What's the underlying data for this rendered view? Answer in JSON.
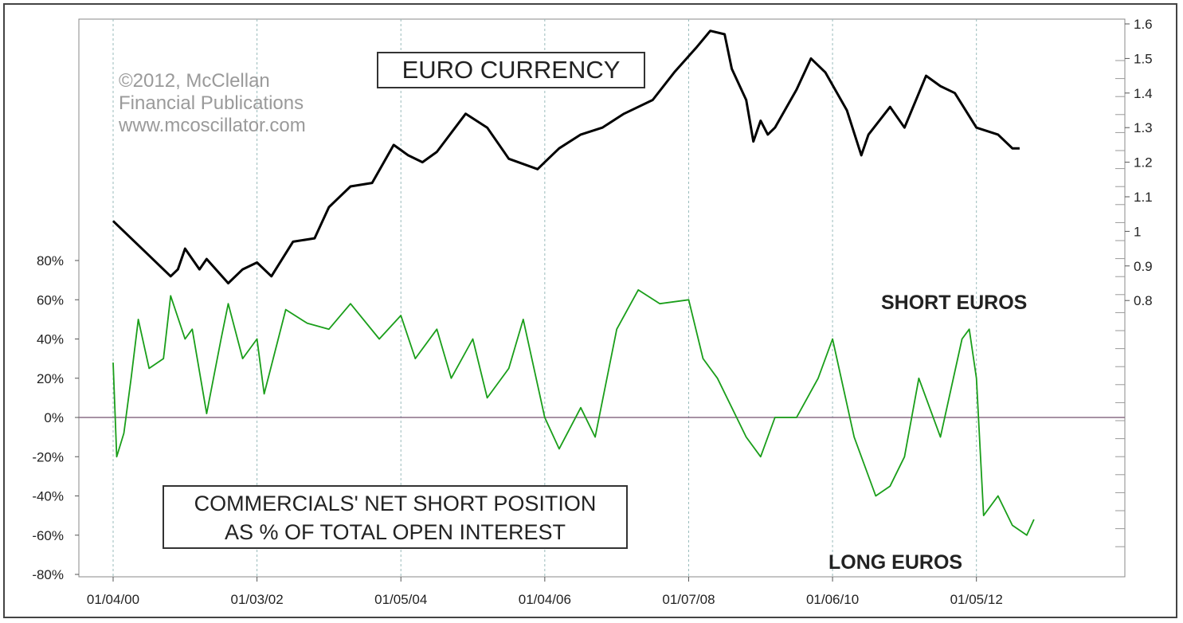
{
  "chart_data": {
    "type": "line",
    "title": "EURO CURRENCY",
    "subtitle_lines": [
      "COMMERCIALS' NET SHORT POSITION",
      "AS % OF TOTAL OPEN INTEREST"
    ],
    "copyright": [
      "©2012, McClellan",
      "Financial Publications",
      "www.mcoscillator.com"
    ],
    "annotations": {
      "short": "SHORT EUROS",
      "long": "LONG EUROS"
    },
    "x_tick_labels": [
      "01/04/00",
      "01/03/02",
      "01/05/04",
      "01/04/06",
      "01/07/08",
      "01/06/10",
      "01/05/12"
    ],
    "left_axis": {
      "ylim": [
        -80,
        80
      ],
      "tick_values": [
        80,
        60,
        40,
        20,
        0,
        -20,
        -40,
        -60,
        -80
      ],
      "tick_labels": [
        "80%",
        "60%",
        "40%",
        "20%",
        "0%",
        "-20%",
        "-40%",
        "-60%",
        "-80%"
      ]
    },
    "right_axis": {
      "ylim": [
        0.8,
        1.6
      ],
      "tick_values": [
        1.6,
        1.5,
        1.4,
        1.3,
        1.2,
        1.1,
        1.0,
        0.9,
        0.8
      ],
      "tick_labels": [
        "1.6",
        "1.5",
        "1.4",
        "1.3",
        "1.2",
        "1.1",
        "1",
        "0.9",
        "0.8"
      ]
    },
    "grid": "vertical dashed",
    "series": [
      {
        "axis": "right",
        "color": "#000000",
        "x": [
          2000.0,
          2000.3,
          2000.5,
          2000.8,
          2000.9,
          2001.0,
          2001.2,
          2001.3,
          2001.6,
          2001.8,
          2002.0,
          2002.2,
          2002.5,
          2002.8,
          2003.0,
          2003.3,
          2003.6,
          2003.9,
          2004.1,
          2004.3,
          2004.5,
          2004.9,
          2005.2,
          2005.5,
          2005.9,
          2006.0,
          2006.2,
          2006.5,
          2006.8,
          2007.1,
          2007.5,
          2007.8,
          2008.1,
          2008.3,
          2008.5,
          2008.6,
          2008.8,
          2008.9,
          2009.0,
          2009.1,
          2009.2,
          2009.5,
          2009.7,
          2009.9,
          2010.2,
          2010.4,
          2010.5,
          2010.8,
          2011.0,
          2011.3,
          2011.5,
          2011.7,
          2012.0,
          2012.3,
          2012.5,
          2012.6
        ],
        "values": [
          1.03,
          0.97,
          0.93,
          0.87,
          0.89,
          0.95,
          0.89,
          0.92,
          0.85,
          0.89,
          0.91,
          0.87,
          0.97,
          0.98,
          1.07,
          1.13,
          1.14,
          1.25,
          1.22,
          1.2,
          1.23,
          1.34,
          1.3,
          1.21,
          1.18,
          1.2,
          1.24,
          1.28,
          1.3,
          1.34,
          1.38,
          1.46,
          1.53,
          1.58,
          1.57,
          1.47,
          1.38,
          1.26,
          1.32,
          1.28,
          1.3,
          1.41,
          1.5,
          1.46,
          1.35,
          1.22,
          1.28,
          1.36,
          1.3,
          1.45,
          1.42,
          1.4,
          1.3,
          1.28,
          1.24,
          1.24
        ]
      },
      {
        "axis": "left",
        "color": "#1a9e1a",
        "x": [
          2000.0,
          2000.05,
          2000.15,
          2000.25,
          2000.35,
          2000.5,
          2000.7,
          2000.8,
          2001.0,
          2001.1,
          2001.3,
          2001.5,
          2001.6,
          2001.8,
          2002.0,
          2002.1,
          2002.4,
          2002.7,
          2003.0,
          2003.3,
          2003.7,
          2004.0,
          2004.2,
          2004.5,
          2004.7,
          2005.0,
          2005.2,
          2005.5,
          2005.7,
          2006.0,
          2006.2,
          2006.5,
          2006.7,
          2007.0,
          2007.3,
          2007.6,
          2008.0,
          2008.2,
          2008.4,
          2008.8,
          2009.0,
          2009.2,
          2009.5,
          2009.8,
          2010.0,
          2010.3,
          2010.6,
          2010.8,
          2011.0,
          2011.2,
          2011.5,
          2011.8,
          2011.9,
          2012.0,
          2012.1,
          2012.3,
          2012.5,
          2012.7,
          2012.8
        ],
        "values": [
          28,
          -20,
          -8,
          20,
          50,
          25,
          30,
          62,
          40,
          45,
          2,
          40,
          58,
          30,
          40,
          12,
          55,
          48,
          45,
          58,
          40,
          52,
          30,
          45,
          20,
          40,
          10,
          25,
          50,
          0,
          -16,
          5,
          -10,
          45,
          65,
          58,
          60,
          30,
          20,
          -10,
          -20,
          0,
          0,
          20,
          40,
          -10,
          -40,
          -35,
          -20,
          20,
          -10,
          40,
          45,
          20,
          -50,
          -40,
          -55,
          -60,
          -52
        ]
      }
    ],
    "reference_line": {
      "axis": "left",
      "value": 0
    }
  }
}
